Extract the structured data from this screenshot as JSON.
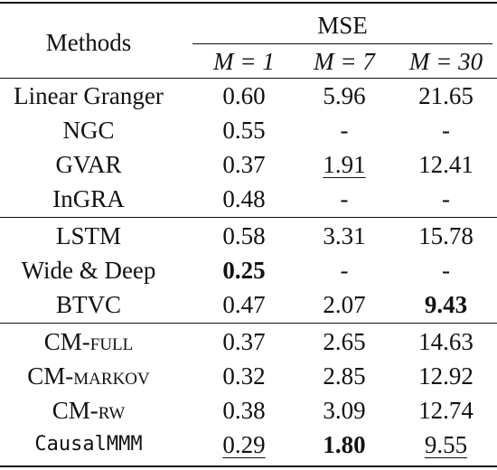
{
  "header": {
    "methods": "Methods",
    "mse": "MSE",
    "m_cols": [
      "M = 1",
      "M = 7",
      "M = 30"
    ]
  },
  "rows": [
    {
      "name": "Linear Granger",
      "v": [
        "0.60",
        "5.96",
        "21.65"
      ]
    },
    {
      "name": "NGC",
      "v": [
        "0.55",
        "-",
        "-"
      ]
    },
    {
      "name": "GVAR",
      "v": [
        "0.37",
        "1.91",
        "12.41"
      ]
    },
    {
      "name": "InGRA",
      "v": [
        "0.48",
        "-",
        "-"
      ]
    },
    {
      "name": "LSTM",
      "v": [
        "0.58",
        "3.31",
        "15.78"
      ]
    },
    {
      "name": "Wide & Deep",
      "v": [
        "0.25",
        "-",
        "-"
      ]
    },
    {
      "name": "BTVC",
      "v": [
        "0.47",
        "2.07",
        "9.43"
      ]
    },
    {
      "name": "CM-",
      "suffix": "full",
      "v": [
        "0.37",
        "2.65",
        "14.63"
      ]
    },
    {
      "name": "CM-",
      "suffix": "markov",
      "v": [
        "0.32",
        "2.85",
        "12.92"
      ]
    },
    {
      "name": "CM-",
      "suffix": "rw",
      "v": [
        "0.38",
        "3.09",
        "12.74"
      ]
    },
    {
      "name": "CausalMMM",
      "v": [
        "0.29",
        "1.80",
        "9.55"
      ]
    }
  ]
}
